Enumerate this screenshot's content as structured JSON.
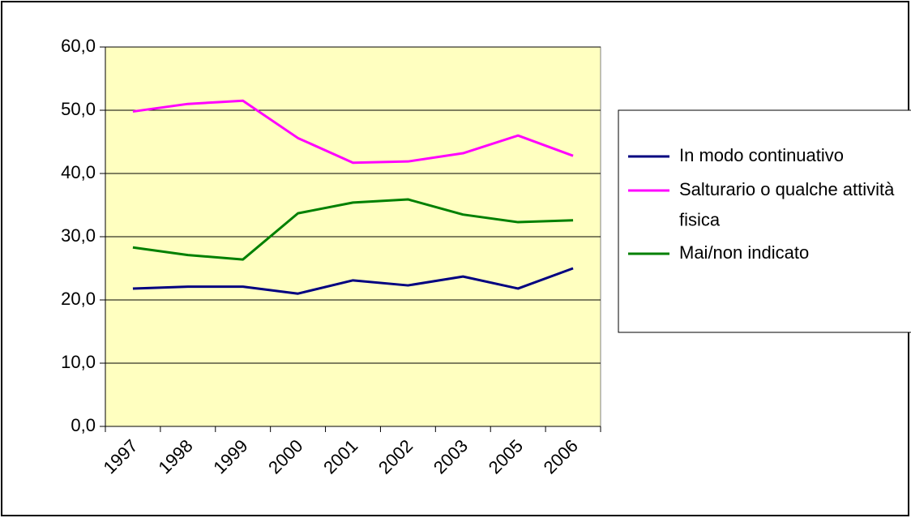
{
  "chart_data": {
    "type": "line",
    "categories": [
      "1997",
      "1998",
      "1999",
      "2000",
      "2001",
      "2002",
      "2003",
      "2005",
      "2006"
    ],
    "series": [
      {
        "name": "In modo continuativo",
        "color": "#000080",
        "values": [
          21.8,
          22.1,
          22.1,
          21.0,
          23.1,
          22.3,
          23.7,
          21.8,
          25.0
        ]
      },
      {
        "name": "Salturario o qualche attività fisica",
        "color": "#ff00ff",
        "values": [
          49.8,
          51.0,
          51.5,
          45.6,
          41.7,
          41.9,
          43.2,
          46.0,
          42.8
        ]
      },
      {
        "name": "Mai/non indicato",
        "color": "#008000",
        "values": [
          28.3,
          27.1,
          26.4,
          33.7,
          35.4,
          35.9,
          33.5,
          32.3,
          32.6
        ]
      }
    ],
    "ylim": [
      0,
      60
    ],
    "yticks": [
      {
        "value": 0,
        "label": "0,0"
      },
      {
        "value": 10,
        "label": "10,0"
      },
      {
        "value": 20,
        "label": "20,0"
      },
      {
        "value": 30,
        "label": "30,0"
      },
      {
        "value": 40,
        "label": "40,0"
      },
      {
        "value": 50,
        "label": "50,0"
      },
      {
        "value": 60,
        "label": "60,0"
      }
    ],
    "grid": true,
    "legend": "right",
    "plot_background": "#ffffc0"
  }
}
